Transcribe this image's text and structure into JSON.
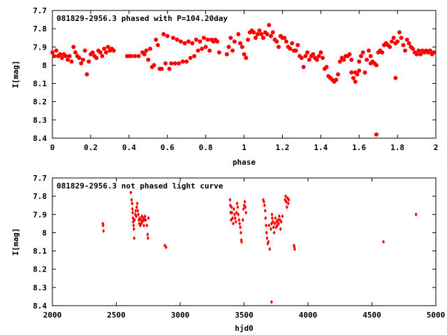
{
  "colors": {
    "marker": "#ff0000",
    "axis": "#000000",
    "background": "#ffffff"
  },
  "chart_data": [
    {
      "type": "scatter",
      "title": "081829-2956.3 phased with P=104.20day",
      "xlabel": "phase",
      "ylabel": "I[mag]",
      "xlim": [
        0,
        2
      ],
      "ylim": [
        8.4,
        7.7
      ],
      "x_ticks": [
        "0",
        "0.2",
        "0.4",
        "0.6",
        "0.8",
        "1",
        "1.2",
        "1.4",
        "1.6",
        "1.8",
        "2"
      ],
      "y_ticks": [
        "7.7",
        "7.8",
        "7.9",
        "8",
        "8.1",
        "8.2",
        "8.3",
        "8.4"
      ],
      "marker": "filled-circle",
      "points": [
        [
          0.0,
          7.93
        ],
        [
          0.01,
          7.95
        ],
        [
          0.02,
          7.92
        ],
        [
          0.03,
          7.95
        ],
        [
          0.04,
          7.94
        ],
        [
          0.05,
          7.96
        ],
        [
          0.06,
          7.94
        ],
        [
          0.07,
          7.95
        ],
        [
          0.08,
          7.97
        ],
        [
          0.09,
          7.95
        ],
        [
          0.1,
          7.98
        ],
        [
          0.11,
          7.9
        ],
        [
          0.12,
          7.93
        ],
        [
          0.13,
          7.95
        ],
        [
          0.14,
          7.96
        ],
        [
          0.15,
          7.99
        ],
        [
          0.16,
          7.97
        ],
        [
          0.17,
          7.92
        ],
        [
          0.18,
          8.05
        ],
        [
          0.19,
          7.98
        ],
        [
          0.2,
          7.94
        ],
        [
          0.21,
          7.93
        ],
        [
          0.22,
          7.95
        ],
        [
          0.23,
          7.96
        ],
        [
          0.24,
          7.92
        ],
        [
          0.25,
          7.93
        ],
        [
          0.26,
          7.95
        ],
        [
          0.27,
          7.91
        ],
        [
          0.28,
          7.93
        ],
        [
          0.29,
          7.9
        ],
        [
          0.3,
          7.92
        ],
        [
          0.31,
          7.91
        ],
        [
          0.32,
          7.92
        ],
        [
          0.39,
          7.95
        ],
        [
          0.4,
          7.95
        ],
        [
          0.41,
          7.95
        ],
        [
          0.43,
          7.95
        ],
        [
          0.45,
          7.95
        ],
        [
          0.47,
          7.93
        ],
        [
          0.48,
          7.94
        ],
        [
          0.49,
          7.92
        ],
        [
          0.5,
          7.97
        ],
        [
          0.51,
          7.91
        ],
        [
          0.52,
          8.01
        ],
        [
          0.53,
          8.0
        ],
        [
          0.54,
          7.86
        ],
        [
          0.55,
          7.89
        ],
        [
          0.56,
          8.02
        ],
        [
          0.57,
          8.02
        ],
        [
          0.58,
          7.83
        ],
        [
          0.59,
          7.99
        ],
        [
          0.6,
          7.84
        ],
        [
          0.61,
          8.02
        ],
        [
          0.62,
          7.99
        ],
        [
          0.63,
          7.85
        ],
        [
          0.64,
          7.99
        ],
        [
          0.65,
          7.86
        ],
        [
          0.66,
          7.99
        ],
        [
          0.67,
          7.87
        ],
        [
          0.68,
          7.98
        ],
        [
          0.69,
          7.88
        ],
        [
          0.7,
          7.98
        ],
        [
          0.71,
          7.87
        ],
        [
          0.72,
          7.96
        ],
        [
          0.73,
          7.88
        ],
        [
          0.74,
          7.95
        ],
        [
          0.75,
          7.86
        ],
        [
          0.76,
          7.92
        ],
        [
          0.77,
          7.87
        ],
        [
          0.78,
          7.91
        ],
        [
          0.79,
          7.85
        ],
        [
          0.8,
          7.9
        ],
        [
          0.81,
          7.86
        ],
        [
          0.82,
          7.92
        ],
        [
          0.83,
          7.86
        ],
        [
          0.84,
          7.87
        ],
        [
          0.85,
          7.86
        ],
        [
          0.86,
          7.87
        ],
        [
          0.87,
          7.93
        ],
        [
          0.91,
          7.94
        ],
        [
          0.92,
          7.9
        ],
        [
          0.93,
          7.85
        ],
        [
          0.94,
          7.92
        ],
        [
          0.95,
          7.87
        ],
        [
          0.97,
          7.83
        ],
        [
          0.98,
          7.88
        ],
        [
          0.99,
          7.9
        ],
        [
          1.0,
          7.94
        ],
        [
          1.01,
          7.96
        ],
        [
          1.02,
          7.86
        ],
        [
          1.03,
          7.82
        ],
        [
          1.04,
          7.81
        ],
        [
          1.05,
          7.82
        ],
        [
          1.06,
          7.85
        ],
        [
          1.07,
          7.83
        ],
        [
          1.08,
          7.81
        ],
        [
          1.09,
          7.83
        ],
        [
          1.1,
          7.85
        ],
        [
          1.11,
          7.82
        ],
        [
          1.12,
          7.83
        ],
        [
          1.13,
          7.78
        ],
        [
          1.14,
          7.84
        ],
        [
          1.15,
          7.82
        ],
        [
          1.16,
          7.86
        ],
        [
          1.17,
          7.87
        ],
        [
          1.18,
          7.9
        ],
        [
          1.19,
          7.84
        ],
        [
          1.2,
          7.85
        ],
        [
          1.21,
          7.85
        ],
        [
          1.22,
          7.87
        ],
        [
          1.23,
          7.9
        ],
        [
          1.24,
          7.91
        ],
        [
          1.25,
          7.88
        ],
        [
          1.26,
          7.92
        ],
        [
          1.27,
          7.92
        ],
        [
          1.28,
          7.89
        ],
        [
          1.29,
          7.95
        ],
        [
          1.3,
          7.96
        ],
        [
          1.31,
          8.01
        ],
        [
          1.32,
          7.95
        ],
        [
          1.33,
          7.93
        ],
        [
          1.34,
          7.97
        ],
        [
          1.35,
          7.95
        ],
        [
          1.36,
          7.94
        ],
        [
          1.37,
          7.96
        ],
        [
          1.38,
          7.97
        ],
        [
          1.39,
          7.95
        ],
        [
          1.4,
          7.93
        ],
        [
          1.41,
          7.96
        ],
        [
          1.42,
          8.02
        ],
        [
          1.43,
          8.01
        ],
        [
          1.44,
          8.06
        ],
        [
          1.45,
          8.07
        ],
        [
          1.46,
          8.08
        ],
        [
          1.47,
          8.09
        ],
        [
          1.48,
          8.08
        ],
        [
          1.49,
          8.05
        ],
        [
          1.5,
          7.98
        ],
        [
          1.51,
          7.96
        ],
        [
          1.52,
          7.97
        ],
        [
          1.53,
          7.95
        ],
        [
          1.54,
          7.95
        ],
        [
          1.55,
          7.94
        ],
        [
          1.56,
          8.04
        ],
        [
          1.57,
          8.07
        ],
        [
          1.58,
          8.09
        ],
        [
          1.59,
          8.05
        ],
        [
          1.6,
          8.03
        ],
        [
          1.61,
          7.95
        ],
        [
          1.62,
          7.93
        ],
        [
          1.63,
          8.04
        ],
        [
          1.64,
          7.97
        ],
        [
          1.65,
          7.92
        ],
        [
          1.66,
          7.95
        ],
        [
          1.67,
          7.98
        ],
        [
          1.68,
          7.99
        ],
        [
          1.69,
          8.0
        ],
        [
          1.7,
          7.93
        ],
        [
          1.71,
          7.92
        ],
        [
          1.72,
          7.93
        ],
        [
          1.73,
          7.89
        ],
        [
          1.74,
          7.88
        ],
        [
          1.75,
          7.89
        ],
        [
          1.76,
          7.9
        ],
        [
          1.77,
          7.87
        ],
        [
          1.78,
          7.85
        ],
        [
          1.79,
          7.88
        ],
        [
          1.8,
          7.87
        ],
        [
          1.81,
          7.82
        ],
        [
          1.82,
          7.85
        ],
        [
          1.83,
          7.89
        ],
        [
          1.84,
          7.92
        ],
        [
          1.85,
          7.86
        ],
        [
          1.86,
          7.88
        ],
        [
          1.87,
          7.9
        ],
        [
          1.88,
          7.91
        ],
        [
          1.89,
          7.93
        ],
        [
          1.9,
          7.94
        ],
        [
          1.91,
          7.92
        ],
        [
          1.92,
          7.94
        ],
        [
          1.93,
          7.92
        ],
        [
          1.94,
          7.93
        ],
        [
          1.95,
          7.92
        ],
        [
          1.96,
          7.93
        ],
        [
          1.97,
          7.92
        ],
        [
          1.98,
          7.94
        ],
        [
          1.99,
          7.93
        ],
        [
          1.6,
          7.98
        ],
        [
          1.66,
          7.99
        ],
        [
          1.69,
          8.38
        ],
        [
          1.79,
          8.07
        ],
        [
          1.56,
          7.97
        ],
        [
          1.58,
          8.04
        ]
      ]
    },
    {
      "type": "scatter",
      "title": "081829-2956.3 not phased light curve",
      "xlabel": "hjd0",
      "ylabel": "I[mag]",
      "xlim": [
        2000,
        5000
      ],
      "ylim": [
        8.4,
        7.7
      ],
      "x_ticks": [
        "2000",
        "2500",
        "3000",
        "3500",
        "4000",
        "4500",
        "5000"
      ],
      "y_ticks": [
        "7.7",
        "7.8",
        "7.9",
        "8",
        "8.1",
        "8.2",
        "8.3",
        "8.4"
      ],
      "marker": "filled-diamond",
      "points": [
        [
          2395,
          7.95
        ],
        [
          2397,
          7.96
        ],
        [
          2400,
          7.99
        ],
        [
          2614,
          7.78
        ],
        [
          2620,
          7.82
        ],
        [
          2624,
          7.84
        ],
        [
          2626,
          7.87
        ],
        [
          2628,
          7.89
        ],
        [
          2630,
          7.92
        ],
        [
          2632,
          7.94
        ],
        [
          2635,
          7.96
        ],
        [
          2638,
          7.98
        ],
        [
          2640,
          8.03
        ],
        [
          2643,
          7.93
        ],
        [
          2648,
          7.9
        ],
        [
          2652,
          7.88
        ],
        [
          2656,
          7.91
        ],
        [
          2660,
          7.86
        ],
        [
          2664,
          7.84
        ],
        [
          2668,
          7.88
        ],
        [
          2672,
          7.9
        ],
        [
          2676,
          7.93
        ],
        [
          2680,
          7.95
        ],
        [
          2684,
          7.92
        ],
        [
          2688,
          7.96
        ],
        [
          2692,
          7.93
        ],
        [
          2696,
          7.95
        ],
        [
          2700,
          7.91
        ],
        [
          2704,
          7.94
        ],
        [
          2708,
          7.93
        ],
        [
          2712,
          7.92
        ],
        [
          2716,
          7.96
        ],
        [
          2720,
          7.93
        ],
        [
          2725,
          7.91
        ],
        [
          2730,
          7.93
        ],
        [
          2740,
          7.96
        ],
        [
          2745,
          8.01
        ],
        [
          2748,
          8.03
        ],
        [
          2752,
          7.92
        ],
        [
          2880,
          8.07
        ],
        [
          2890,
          8.08
        ],
        [
          3390,
          7.82
        ],
        [
          3392,
          7.85
        ],
        [
          3395,
          7.89
        ],
        [
          3398,
          7.93
        ],
        [
          3402,
          7.86
        ],
        [
          3405,
          7.89
        ],
        [
          3410,
          7.92
        ],
        [
          3415,
          7.95
        ],
        [
          3420,
          7.87
        ],
        [
          3425,
          7.9
        ],
        [
          3430,
          7.92
        ],
        [
          3435,
          7.94
        ],
        [
          3440,
          7.89
        ],
        [
          3445,
          7.84
        ],
        [
          3450,
          7.86
        ],
        [
          3455,
          7.9
        ],
        [
          3460,
          7.93
        ],
        [
          3465,
          7.95
        ],
        [
          3470,
          7.97
        ],
        [
          3475,
          8.0
        ],
        [
          3478,
          8.04
        ],
        [
          3480,
          8.05
        ],
        [
          3490,
          7.93
        ],
        [
          3495,
          7.87
        ],
        [
          3500,
          7.85
        ],
        [
          3505,
          7.83
        ],
        [
          3510,
          7.86
        ],
        [
          3515,
          7.89
        ],
        [
          3650,
          7.82
        ],
        [
          3655,
          7.83
        ],
        [
          3660,
          7.85
        ],
        [
          3665,
          7.88
        ],
        [
          3668,
          7.92
        ],
        [
          3672,
          7.96
        ],
        [
          3676,
          8.0
        ],
        [
          3680,
          8.03
        ],
        [
          3685,
          8.06
        ],
        [
          3690,
          8.05
        ],
        [
          3695,
          7.96
        ],
        [
          3700,
          8.09
        ],
        [
          3710,
          7.98
        ],
        [
          3715,
          7.95
        ],
        [
          3718,
          7.9
        ],
        [
          3720,
          7.92
        ],
        [
          3725,
          7.94
        ],
        [
          3730,
          7.97
        ],
        [
          3735,
          8.0
        ],
        [
          3740,
          7.95
        ],
        [
          3745,
          7.92
        ],
        [
          3750,
          7.97
        ],
        [
          3755,
          7.94
        ],
        [
          3760,
          7.96
        ],
        [
          3765,
          7.93
        ],
        [
          3770,
          7.95
        ],
        [
          3775,
          7.91
        ],
        [
          3780,
          7.93
        ],
        [
          3785,
          7.98
        ],
        [
          3790,
          7.94
        ],
        [
          3800,
          7.91
        ],
        [
          3820,
          7.82
        ],
        [
          3825,
          7.8
        ],
        [
          3830,
          7.83
        ],
        [
          3835,
          7.86
        ],
        [
          3840,
          7.81
        ],
        [
          3845,
          7.84
        ],
        [
          3850,
          7.82
        ],
        [
          3890,
          8.07
        ],
        [
          3893,
          8.08
        ],
        [
          3896,
          8.09
        ],
        [
          3715,
          8.38
        ],
        [
          4590,
          8.05
        ],
        [
          4845,
          7.9
        ]
      ]
    }
  ]
}
